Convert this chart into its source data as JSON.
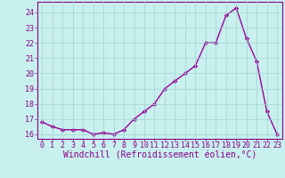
{
  "x": [
    0,
    1,
    2,
    3,
    4,
    5,
    6,
    7,
    8,
    9,
    10,
    11,
    12,
    13,
    14,
    15,
    16,
    17,
    18,
    19,
    20,
    21,
    22,
    23
  ],
  "y": [
    16.8,
    16.5,
    16.3,
    16.3,
    16.3,
    16.0,
    16.1,
    16.0,
    16.3,
    17.0,
    17.5,
    18.0,
    19.0,
    19.5,
    20.0,
    20.5,
    22.0,
    22.0,
    23.8,
    24.3,
    22.3,
    20.8,
    17.5,
    16.0
  ],
  "line_color": "#990099",
  "marker": "D",
  "marker_size": 2.2,
  "background_color": "#c8f0ee",
  "grid_color": "#a0d4d0",
  "xlabel": "Windchill (Refroidissement éolien,°C)",
  "ylim": [
    15.7,
    24.7
  ],
  "xlim": [
    -0.5,
    23.5
  ],
  "yticks": [
    16,
    17,
    18,
    19,
    20,
    21,
    22,
    23,
    24
  ],
  "xticks": [
    0,
    1,
    2,
    3,
    4,
    5,
    6,
    7,
    8,
    9,
    10,
    11,
    12,
    13,
    14,
    15,
    16,
    17,
    18,
    19,
    20,
    21,
    22,
    23
  ],
  "tick_label_fontsize": 6.0,
  "xlabel_fontsize": 7.0,
  "tick_color": "#880088",
  "spine_color": "#880088",
  "line_width": 1.0
}
